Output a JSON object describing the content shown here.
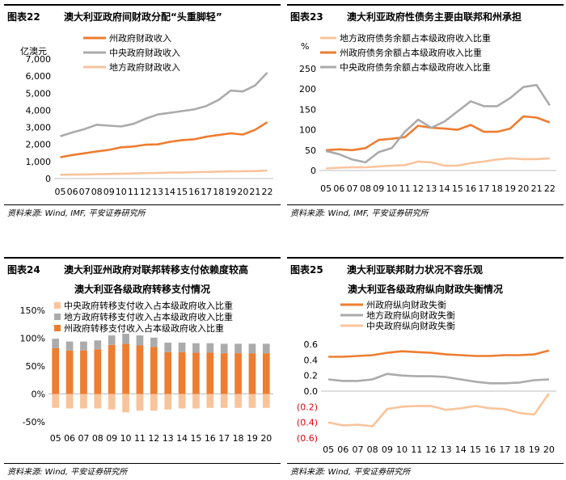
{
  "colors": {
    "orange": "#ED7D31",
    "gray": "#ABABAB",
    "peach": "#F8C49C",
    "red": "#E8000B"
  },
  "panels": [
    {
      "number": "图表22",
      "title": "澳大利亚政府间财政分配“头重脚轻”",
      "source": "资料来源: Wind, IMF, 平安证券研究所"
    },
    {
      "number": "图表23",
      "title": "澳大利亚政府性债务主要由联邦和州承担",
      "source": "资料来源: Wind, IMF, 平安证券研究所"
    },
    {
      "number": "图表24",
      "title": "澳大利亚州政府对联邦转移支付依赖度较高",
      "source": "资料来源: Wind, 平安证券研究所"
    },
    {
      "number": "图表25",
      "title": "澳大利亚联邦财力状况不容乐观",
      "source": "资料来源: Wind, 平安证券研究所"
    }
  ],
  "chart_data": [
    {
      "type": "line",
      "unit_label": "亿澳元",
      "ylim": [
        0,
        7000
      ],
      "yticks": [
        0,
        1000,
        2000,
        3000,
        4000,
        5000,
        6000,
        7000
      ],
      "ytick_labels": [
        "0",
        "1,000",
        "2,000",
        "3,000",
        "4,000",
        "5,000",
        "6,000",
        "7,000"
      ],
      "categories": [
        "05",
        "06",
        "07",
        "08",
        "09",
        "10",
        "11",
        "12",
        "13",
        "14",
        "15",
        "16",
        "17",
        "18",
        "19",
        "20",
        "21",
        "22"
      ],
      "series": [
        {
          "name": "州政府财政收入",
          "color": "#ED7D31",
          "values": [
            1250,
            1380,
            1480,
            1590,
            1680,
            1830,
            1880,
            1980,
            2000,
            2150,
            2250,
            2300,
            2450,
            2550,
            2650,
            2580,
            2850,
            3300
          ]
        },
        {
          "name": "中央政府财政收入",
          "color": "#ABABAB",
          "values": [
            2480,
            2700,
            2900,
            3150,
            3100,
            3050,
            3200,
            3500,
            3750,
            3850,
            3950,
            4050,
            4250,
            4600,
            5150,
            5100,
            5450,
            6200
          ]
        },
        {
          "name": "地方政府财政收入",
          "color": "#F8C49C",
          "values": [
            220,
            230,
            240,
            260,
            270,
            280,
            300,
            320,
            330,
            350,
            360,
            380,
            390,
            410,
            420,
            430,
            440,
            470
          ]
        }
      ]
    },
    {
      "type": "line",
      "unit_label": "%",
      "ylim": [
        0,
        250
      ],
      "yticks": [
        0,
        50,
        100,
        150,
        200,
        250
      ],
      "ytick_labels": [
        "0",
        "50",
        "100",
        "150",
        "200",
        "250"
      ],
      "categories": [
        "05",
        "06",
        "07",
        "08",
        "09",
        "10",
        "11",
        "12",
        "13",
        "14",
        "15",
        "16",
        "17",
        "18",
        "19",
        "20",
        "21",
        "22"
      ],
      "series": [
        {
          "name": "地方政府债务余额占本级政府收入比重",
          "color": "#F8C49C",
          "values": [
            5,
            7,
            8,
            8,
            10,
            12,
            13,
            22,
            20,
            12,
            12,
            18,
            22,
            27,
            30,
            28,
            28,
            30
          ]
        },
        {
          "name": "州政府债务余额占本级政府收入比重",
          "color": "#ED7D31",
          "values": [
            50,
            52,
            50,
            55,
            75,
            78,
            82,
            110,
            105,
            103,
            100,
            112,
            95,
            95,
            103,
            133,
            130,
            118
          ]
        },
        {
          "name": "中央政府债务余额占本级政府收入比重",
          "color": "#ABABAB",
          "values": [
            48,
            40,
            27,
            20,
            45,
            55,
            95,
            125,
            105,
            120,
            145,
            170,
            158,
            158,
            178,
            205,
            210,
            160
          ]
        }
      ]
    },
    {
      "type": "bar",
      "title": "澳大利亚各级政府转移支付情况",
      "ylim": [
        -50,
        150
      ],
      "yticks": [
        -50,
        0,
        50,
        100,
        150
      ],
      "ytick_labels": [
        "-50%",
        "0%",
        "50%",
        "100%",
        "150%"
      ],
      "categories": [
        "05",
        "06",
        "07",
        "08",
        "09",
        "10",
        "11",
        "12",
        "13",
        "14",
        "15",
        "16",
        "17",
        "18",
        "19",
        "20"
      ],
      "series": [
        {
          "name": "中央政府转移支付收入占本级政府收入比重",
          "color": "#F8C49C",
          "values": [
            -25,
            -26,
            -26,
            -26,
            -28,
            -33,
            -30,
            -30,
            -28,
            -26,
            -26,
            -25,
            -25,
            -25,
            -25,
            -25
          ]
        },
        {
          "name": "地方政府转移支付收入占本级政府收入比重",
          "color": "#ABABAB",
          "values": [
            17,
            16,
            16,
            16,
            17,
            18,
            18,
            17,
            17,
            17,
            17,
            17,
            17,
            17,
            17,
            17
          ]
        },
        {
          "name": "州政府转移支付收入占本级政府收入比重",
          "color": "#ED7D31",
          "values": [
            82,
            78,
            78,
            80,
            88,
            90,
            87,
            84,
            75,
            75,
            74,
            74,
            73,
            73,
            73,
            73
          ]
        }
      ]
    },
    {
      "type": "line",
      "title": "澳大利亚各级政府纵向财政失衡情况",
      "ylim": [
        -0.6,
        0.6
      ],
      "yticks": [
        -0.6,
        -0.4,
        -0.2,
        0,
        0.2,
        0.4,
        0.6
      ],
      "ytick_labels": [
        "(0.6)",
        "(0.4)",
        "(0.2)",
        "0.0",
        "0.2",
        "0.4",
        "0.6"
      ],
      "categories": [
        "05",
        "06",
        "07",
        "08",
        "09",
        "10",
        "11",
        "12",
        "13",
        "14",
        "15",
        "16",
        "17",
        "18",
        "19",
        "20"
      ],
      "series": [
        {
          "name": "州政府纵向财政失衡",
          "color": "#ED7D31",
          "values": [
            0.44,
            0.44,
            0.45,
            0.46,
            0.49,
            0.51,
            0.5,
            0.49,
            0.47,
            0.46,
            0.45,
            0.45,
            0.46,
            0.46,
            0.47,
            0.52
          ]
        },
        {
          "name": "地方政府纵向财政失衡",
          "color": "#ABABAB",
          "values": [
            0.15,
            0.13,
            0.13,
            0.15,
            0.22,
            0.2,
            0.19,
            0.19,
            0.18,
            0.15,
            0.12,
            0.1,
            0.1,
            0.11,
            0.14,
            0.15
          ]
        },
        {
          "name": "中央政府纵向财政失衡",
          "color": "#F8C49C",
          "values": [
            -0.4,
            -0.44,
            -0.43,
            -0.45,
            -0.23,
            -0.2,
            -0.19,
            -0.19,
            -0.24,
            -0.22,
            -0.19,
            -0.22,
            -0.23,
            -0.28,
            -0.3,
            -0.03
          ]
        }
      ]
    }
  ]
}
